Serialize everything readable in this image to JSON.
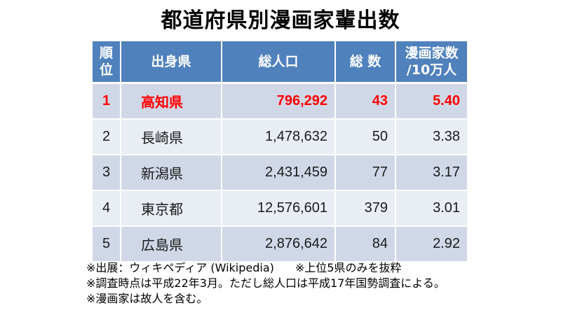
{
  "title": "都道府県別漫画家輩出数",
  "table": {
    "headers": {
      "rank": [
        "順",
        "位"
      ],
      "prefecture": "出身県",
      "population": "総人口",
      "count": "総 数",
      "per_capita": [
        "漫画家数",
        "/10万人"
      ]
    },
    "rows": [
      {
        "rank": "1",
        "prefecture": "高知県",
        "population": "796,292",
        "count": "43",
        "per_capita": "5.40"
      },
      {
        "rank": "2",
        "prefecture": "長崎県",
        "population": "1,478,632",
        "count": "50",
        "per_capita": "3.38"
      },
      {
        "rank": "3",
        "prefecture": "新潟県",
        "population": "2,431,459",
        "count": "77",
        "per_capita": "3.17"
      },
      {
        "rank": "4",
        "prefecture": "東京都",
        "population": "12,576,601",
        "count": "379",
        "per_capita": "3.01"
      },
      {
        "rank": "5",
        "prefecture": "広島県",
        "population": "2,876,642",
        "count": "84",
        "per_capita": "2.92"
      }
    ]
  },
  "notes": {
    "source": "※出展：ウィキペディア (Wikipedia)",
    "scope": "※上位5県のみを抜粋",
    "survey": "※調査時点は平成22年3月。ただし総人口は平成17年国勢調査による。",
    "deceased": "※漫画家は故人を含む。"
  },
  "colors": {
    "header_bg": "#4f81bd",
    "row_odd_bg": "#d0d8e8",
    "row_even_bg": "#e9edf4",
    "highlight_text": "#ff0000"
  }
}
